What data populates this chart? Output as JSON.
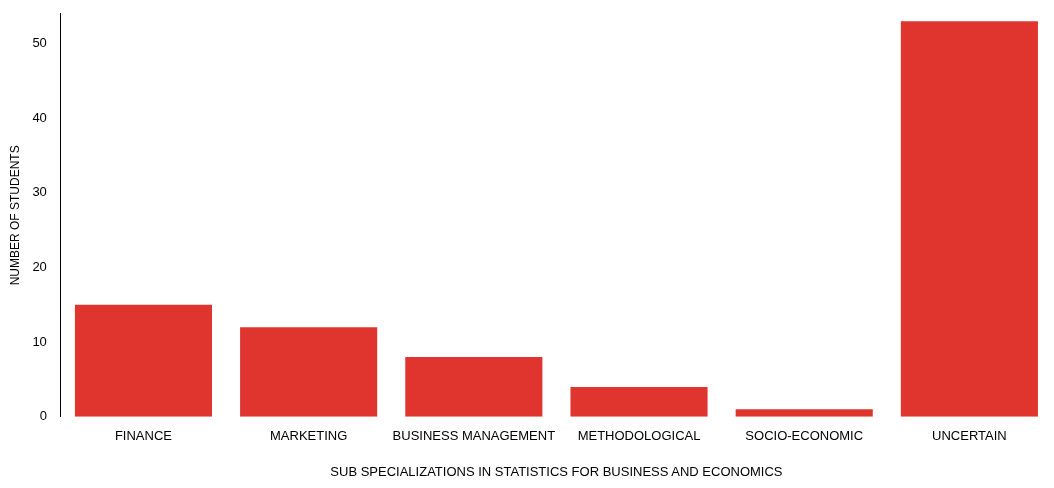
{
  "chart_data": {
    "type": "bar",
    "xlabel": "SUB SPECIALIZATIONS IN STATISTICS FOR BUSINESS AND ECONOMICS",
    "ylabel": "NUMBER OF STUDENTS",
    "categories": [
      "FINANCE",
      "MARKETING",
      "BUSINESS MANAGEMENT",
      "METHODOLOGICAL",
      "SOCIO-ECONOMIC",
      "UNCERTAIN"
    ],
    "values": [
      15,
      12,
      8,
      4,
      1,
      53
    ],
    "color": "#e0342f",
    "ylim": [
      0,
      54
    ],
    "yticks": [
      0,
      10,
      20,
      30,
      40,
      50
    ],
    "grid": false,
    "legend": false
  }
}
